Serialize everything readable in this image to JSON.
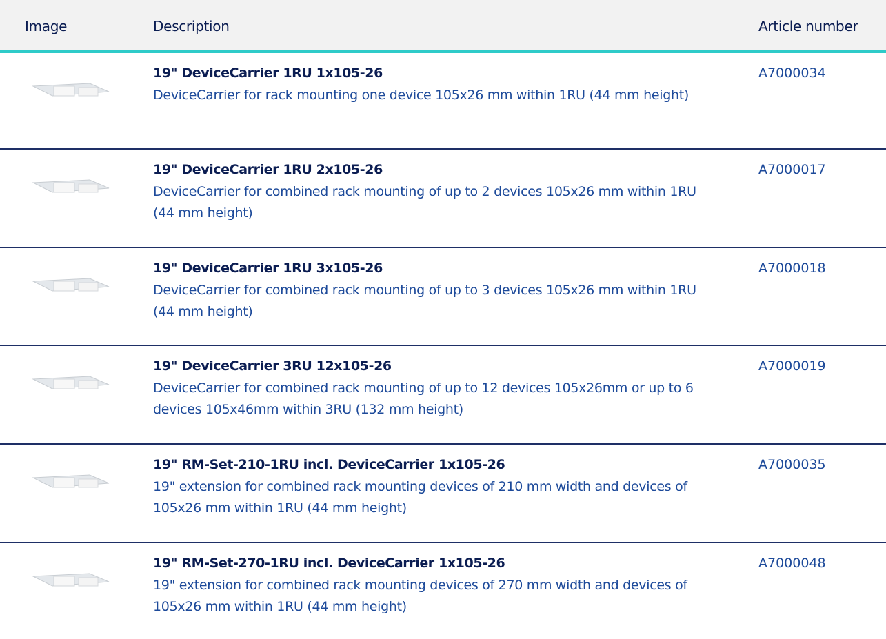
{
  "table": {
    "header": [
      "Image",
      "Description",
      "Article number"
    ],
    "rows": [
      {
        "title": "19\" DeviceCarrier 1RU 1x105-26",
        "description": "DeviceCarrier for rack mounting one device 105x26 mm within 1RU (44 mm height)",
        "article": "A7000034"
      },
      {
        "title": "19\" DeviceCarrier 1RU 2x105-26",
        "description": "DeviceCarrier for combined rack mounting of up to 2 devices 105x26 mm within 1RU (44 mm height)",
        "article": "A7000017"
      },
      {
        "title": "19\" DeviceCarrier 1RU 3x105-26",
        "description": "DeviceCarrier for combined rack mounting of up to 3 devices 105x26 mm within 1RU (44 mm height)",
        "article": "A7000018"
      },
      {
        "title": "19\" DeviceCarrier 3RU 12x105-26",
        "description": "DeviceCarrier for combined rack mounting of up to 12 devices 105x26mm or up to 6 devices 105x46mm within 3RU (132 mm height)",
        "article": "A7000019"
      },
      {
        "title": "19\" RM-Set-210-1RU incl. DeviceCarrier 1x105-26",
        "description": "19\" extension for combined rack mounting devices of 210 mm width and devices of 105x26 mm within 1RU (44 mm height)",
        "article": "A7000035"
      },
      {
        "title": "19\" RM-Set-270-1RU incl. DeviceCarrier 1x105-26",
        "description": "19\" extension for combined rack mounting devices of 270 mm width and devices of 105x26 mm within 1RU (44 mm height)",
        "article": "A7000048"
      }
    ]
  }
}
